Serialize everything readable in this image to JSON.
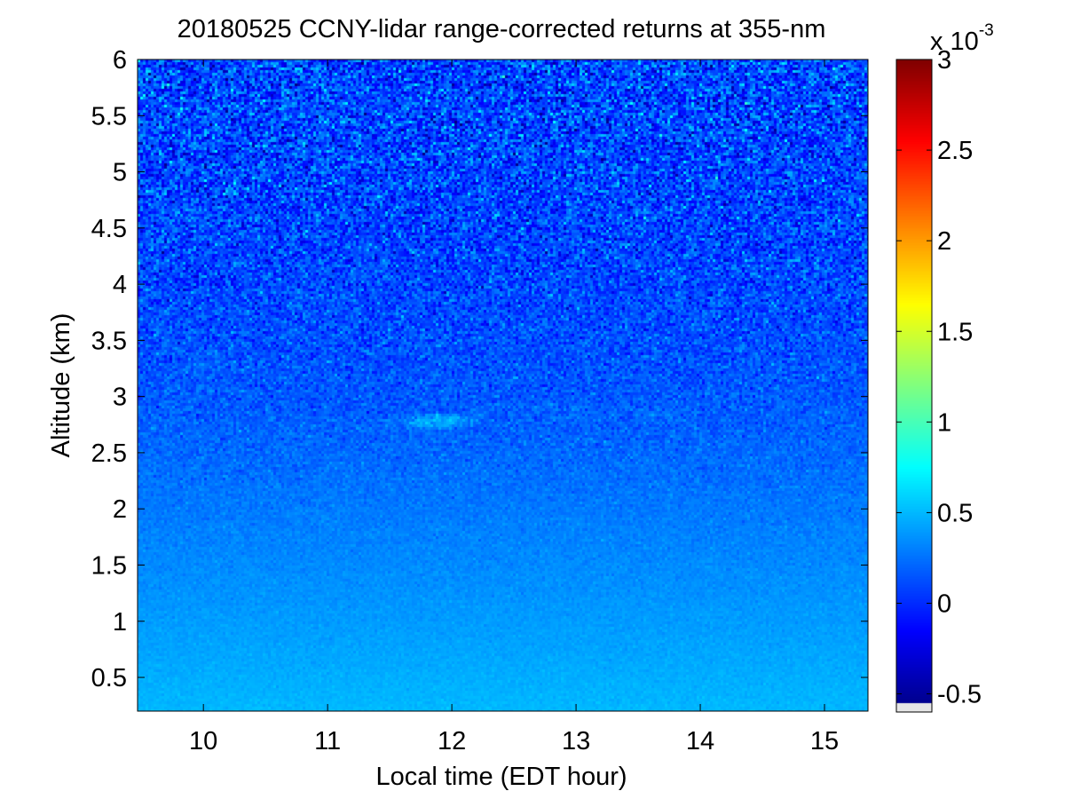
{
  "chart_data": {
    "type": "heatmap",
    "title": "20180525 CCNY-lidar range-corrected returns at 355-nm",
    "xlabel": "Local time (EDT hour)",
    "ylabel": "Altitude (km)",
    "xlim": [
      9.47,
      15.35
    ],
    "ylim": [
      0.2,
      6.0
    ],
    "xticks": [
      10,
      11,
      12,
      13,
      14,
      15
    ],
    "yticks": [
      0.5,
      1,
      1.5,
      2,
      2.5,
      3,
      3.5,
      4,
      4.5,
      5,
      5.5,
      6
    ],
    "xtick_labels": [
      "10",
      "11",
      "12",
      "13",
      "14",
      "15"
    ],
    "ytick_labels": [
      "0.5",
      "1",
      "1.5",
      "2",
      "2.5",
      "3",
      "3.5",
      "4",
      "4.5",
      "5",
      "5.5",
      "6"
    ],
    "colorbar": {
      "clim": [
        -0.6,
        3.0
      ],
      "ticks": [
        -0.5,
        0,
        0.5,
        1,
        1.5,
        2,
        2.5,
        3
      ],
      "tick_labels": [
        "-0.5",
        "0",
        "0.5",
        "1",
        "1.5",
        "2",
        "2.5",
        "3"
      ],
      "multiplier_base": "x 10",
      "multiplier_exp": "-3",
      "colormap": "jet"
    },
    "field_description": {
      "mean_value_by_altitude_km": [
        [
          0.2,
          0.5
        ],
        [
          1.0,
          0.4
        ],
        [
          2.0,
          0.28
        ],
        [
          3.0,
          0.16
        ],
        [
          4.0,
          0.1
        ],
        [
          5.0,
          0.09
        ],
        [
          6.0,
          0.1
        ]
      ],
      "noise_amplitude_by_altitude_km": [
        [
          0.2,
          0.04
        ],
        [
          1.0,
          0.05
        ],
        [
          2.0,
          0.08
        ],
        [
          3.0,
          0.17
        ],
        [
          4.0,
          0.28
        ],
        [
          5.0,
          0.38
        ],
        [
          6.0,
          0.45
        ]
      ],
      "feature": {
        "time": 11.9,
        "altitude": 2.78,
        "value": 0.6
      }
    },
    "grid": false
  }
}
